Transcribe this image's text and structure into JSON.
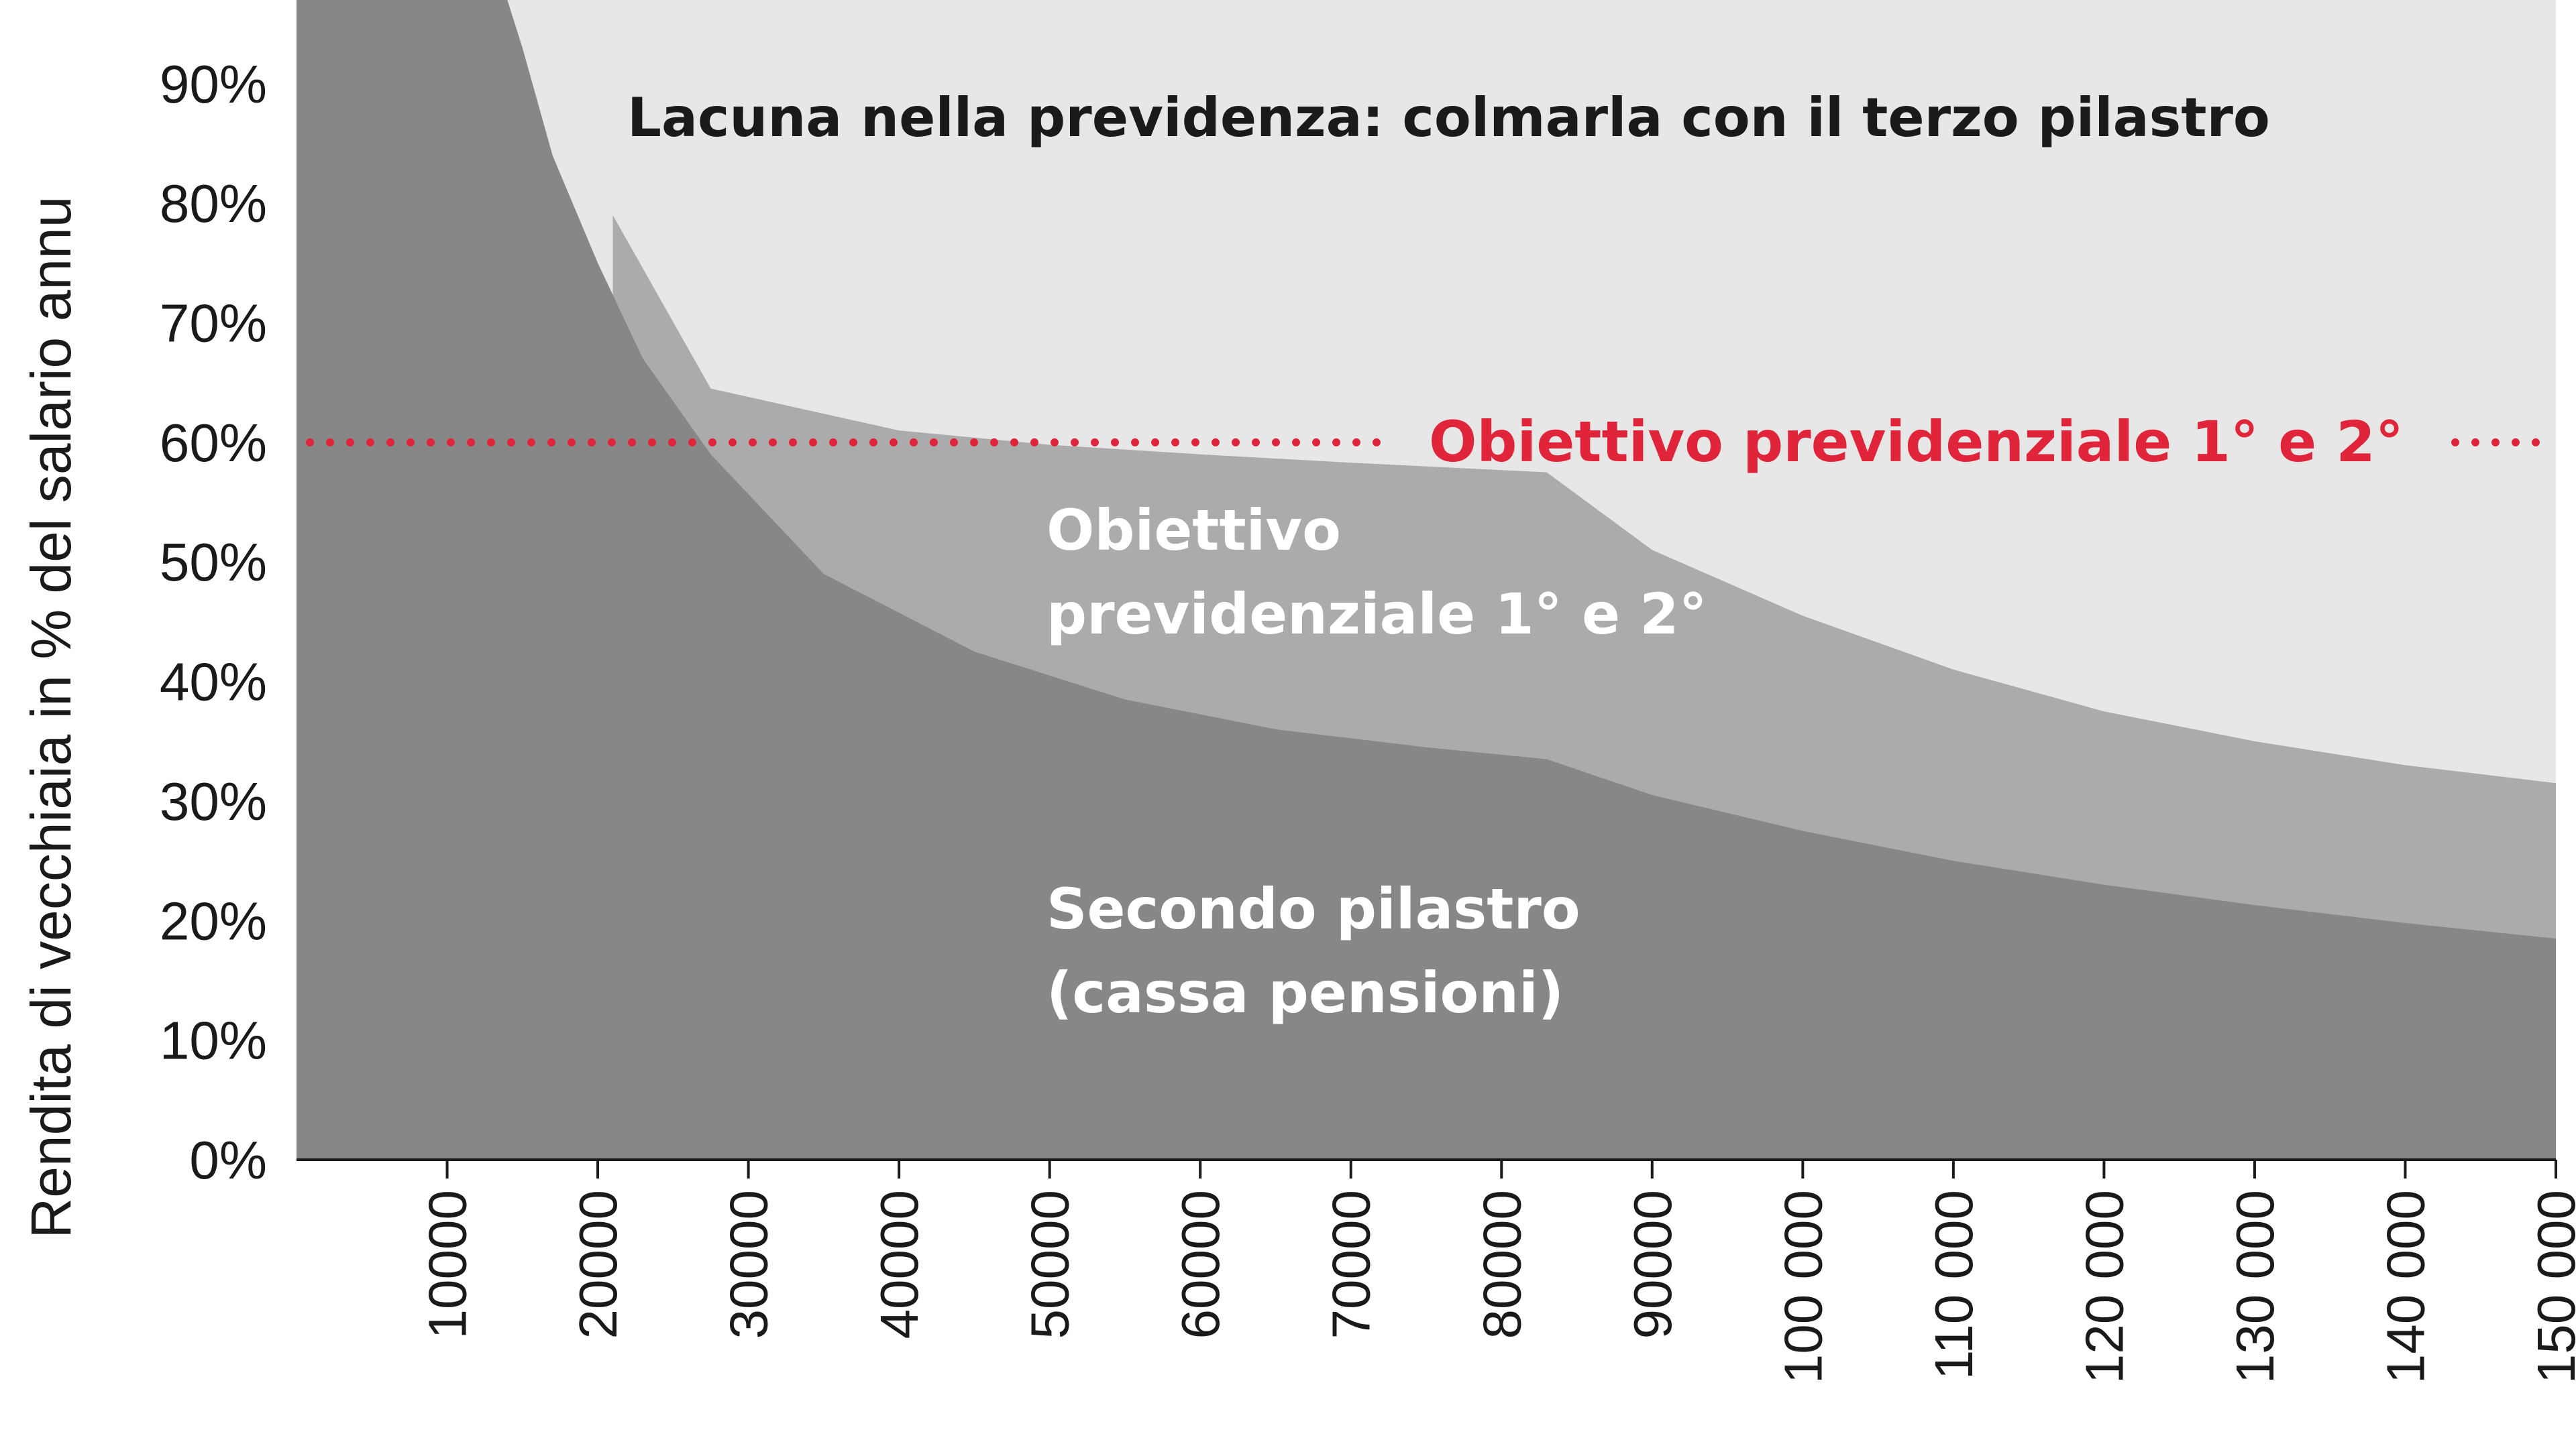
{
  "chart_data": {
    "type": "area",
    "title": "",
    "xlabel": "",
    "ylabel": "Rendita di vecchiaia in % del salario annu",
    "xlim": [
      0,
      150000
    ],
    "ylim": [
      0,
      97
    ],
    "x_ticks": [
      10000,
      20000,
      30000,
      40000,
      50000,
      60000,
      70000,
      80000,
      90000,
      100000,
      110000,
      120000,
      130000,
      140000,
      150000
    ],
    "x_tick_labels": [
      "10000",
      "20000",
      "30000",
      "40000",
      "50000",
      "60000",
      "70000",
      "80000",
      "90000",
      "100 000",
      "110 000",
      "120 000",
      "130 000",
      "140 000",
      "150 000"
    ],
    "y_ticks": [
      0,
      10,
      20,
      30,
      40,
      50,
      60,
      70,
      80,
      90
    ],
    "y_tick_labels": [
      "0%",
      "10%",
      "20%",
      "30%",
      "40%",
      "50%",
      "60%",
      "70%",
      "80%",
      "90%"
    ],
    "grid": false,
    "series": [
      {
        "name": "Lacuna nella previdenza: colmarla con il terzo pilastro",
        "color": "#e7e7e8",
        "x": [
          0,
          150000
        ],
        "y": [
          97,
          97
        ]
      },
      {
        "name": "Obiettivo previdenziale 1° e 2°",
        "color": "#ababab",
        "x": [
          21000,
          21000,
          27500,
          40000,
          50000,
          60000,
          70000,
          83000,
          90000,
          100000,
          110000,
          120000,
          130000,
          140000,
          150000
        ],
        "y": [
          78,
          79,
          64.5,
          61,
          59.8,
          59,
          58.3,
          57.5,
          51,
          45.5,
          41,
          37.5,
          35,
          33,
          31.5
        ]
      },
      {
        "name": "Secondo pilastro (cassa pensioni)",
        "color": "#878787",
        "x": [
          0,
          14000,
          15000,
          17000,
          20000,
          23000,
          27500,
          35000,
          45000,
          55000,
          65000,
          75000,
          83000,
          90000,
          100000,
          110000,
          120000,
          130000,
          140000,
          150000
        ],
        "y": [
          97,
          97,
          93,
          84,
          75,
          67,
          59,
          49,
          42.5,
          38.5,
          36,
          34.5,
          33.5,
          30.5,
          27.5,
          25,
          23,
          21.3,
          19.8,
          18.5
        ]
      }
    ],
    "reference_line": {
      "label": "Obiettivo previdenziale 1° e 2°",
      "y": 60,
      "color": "#e0243a",
      "style": "dotted"
    },
    "annotations": {
      "gap_label": "Lacuna nella previdenza: colmarla con il terzo pilastro",
      "target_label_line1": "Obiettivo",
      "target_label_line2": "previdenziale 1° e 2°",
      "second_pillar_line1": "Secondo pilastro",
      "second_pillar_line2": "(cassa pensioni)",
      "reference_label": "Obiettivo previdenziale 1° e 2°"
    }
  }
}
